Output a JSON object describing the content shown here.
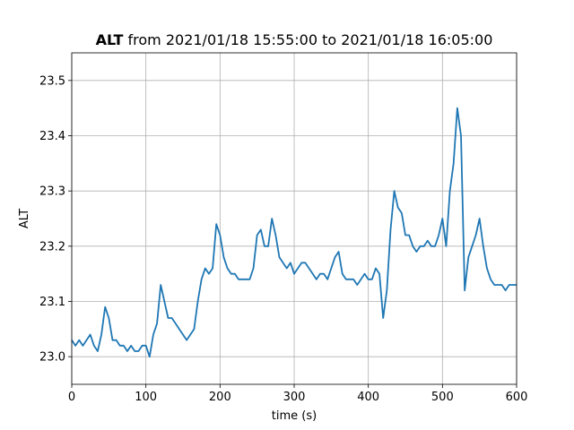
{
  "chart_data": {
    "type": "line",
    "title_parts": [
      "ALT",
      "from 2021/01/18 15:55:00 to 2021/01/18 16:05:00"
    ],
    "xlabel": "time (s)",
    "ylabel": "ALT",
    "x": [
      0,
      5,
      10,
      15,
      20,
      25,
      30,
      35,
      40,
      45,
      50,
      55,
      60,
      65,
      70,
      75,
      80,
      85,
      90,
      95,
      100,
      105,
      110,
      115,
      120,
      125,
      130,
      135,
      140,
      145,
      150,
      155,
      160,
      165,
      170,
      175,
      180,
      185,
      190,
      195,
      200,
      205,
      210,
      215,
      220,
      225,
      230,
      235,
      240,
      245,
      250,
      255,
      260,
      265,
      270,
      275,
      280,
      285,
      290,
      295,
      300,
      305,
      310,
      315,
      320,
      325,
      330,
      335,
      340,
      345,
      350,
      355,
      360,
      365,
      370,
      375,
      380,
      385,
      390,
      395,
      400,
      405,
      410,
      415,
      420,
      425,
      430,
      435,
      440,
      445,
      450,
      455,
      460,
      465,
      470,
      475,
      480,
      485,
      490,
      495,
      500,
      505,
      510,
      515,
      520,
      525,
      530,
      535,
      540,
      545,
      550,
      555,
      560,
      565,
      570,
      575,
      580,
      585,
      590,
      595,
      600
    ],
    "series": [
      {
        "name": "ALT",
        "color": "#1f77b4",
        "values": [
          23.03,
          23.02,
          23.03,
          23.02,
          23.03,
          23.04,
          23.02,
          23.01,
          23.04,
          23.09,
          23.07,
          23.03,
          23.03,
          23.02,
          23.02,
          23.01,
          23.02,
          23.01,
          23.01,
          23.02,
          23.02,
          23.0,
          23.04,
          23.06,
          23.13,
          23.1,
          23.07,
          23.07,
          23.06,
          23.05,
          23.04,
          23.03,
          23.04,
          23.05,
          23.1,
          23.14,
          23.16,
          23.15,
          23.16,
          23.24,
          23.22,
          23.18,
          23.16,
          23.15,
          23.15,
          23.14,
          23.14,
          23.14,
          23.14,
          23.16,
          23.22,
          23.23,
          23.2,
          23.2,
          23.25,
          23.22,
          23.18,
          23.17,
          23.16,
          23.17,
          23.15,
          23.16,
          23.17,
          23.17,
          23.16,
          23.15,
          23.14,
          23.15,
          23.15,
          23.14,
          23.16,
          23.18,
          23.19,
          23.15,
          23.14,
          23.14,
          23.14,
          23.13,
          23.14,
          23.15,
          23.14,
          23.14,
          23.16,
          23.15,
          23.07,
          23.12,
          23.23,
          23.3,
          23.27,
          23.26,
          23.22,
          23.22,
          23.2,
          23.19,
          23.2,
          23.2,
          23.21,
          23.2,
          23.2,
          23.22,
          23.25,
          23.2,
          23.3,
          23.35,
          23.45,
          23.4,
          23.12,
          23.18,
          23.2,
          23.22,
          23.25,
          23.2,
          23.16,
          23.14,
          23.13,
          23.13,
          23.13,
          23.12,
          23.13,
          23.13,
          23.13
        ]
      }
    ],
    "xlim": [
      0,
      600
    ],
    "xticks": [
      0,
      100,
      200,
      300,
      400,
      500,
      600
    ],
    "ylim": [
      22.95,
      23.55
    ],
    "yticks": [
      {
        "value": 23,
        "label": "23.0"
      },
      23.1,
      23.2,
      23.3,
      23.4,
      23.5
    ],
    "grid": true
  }
}
